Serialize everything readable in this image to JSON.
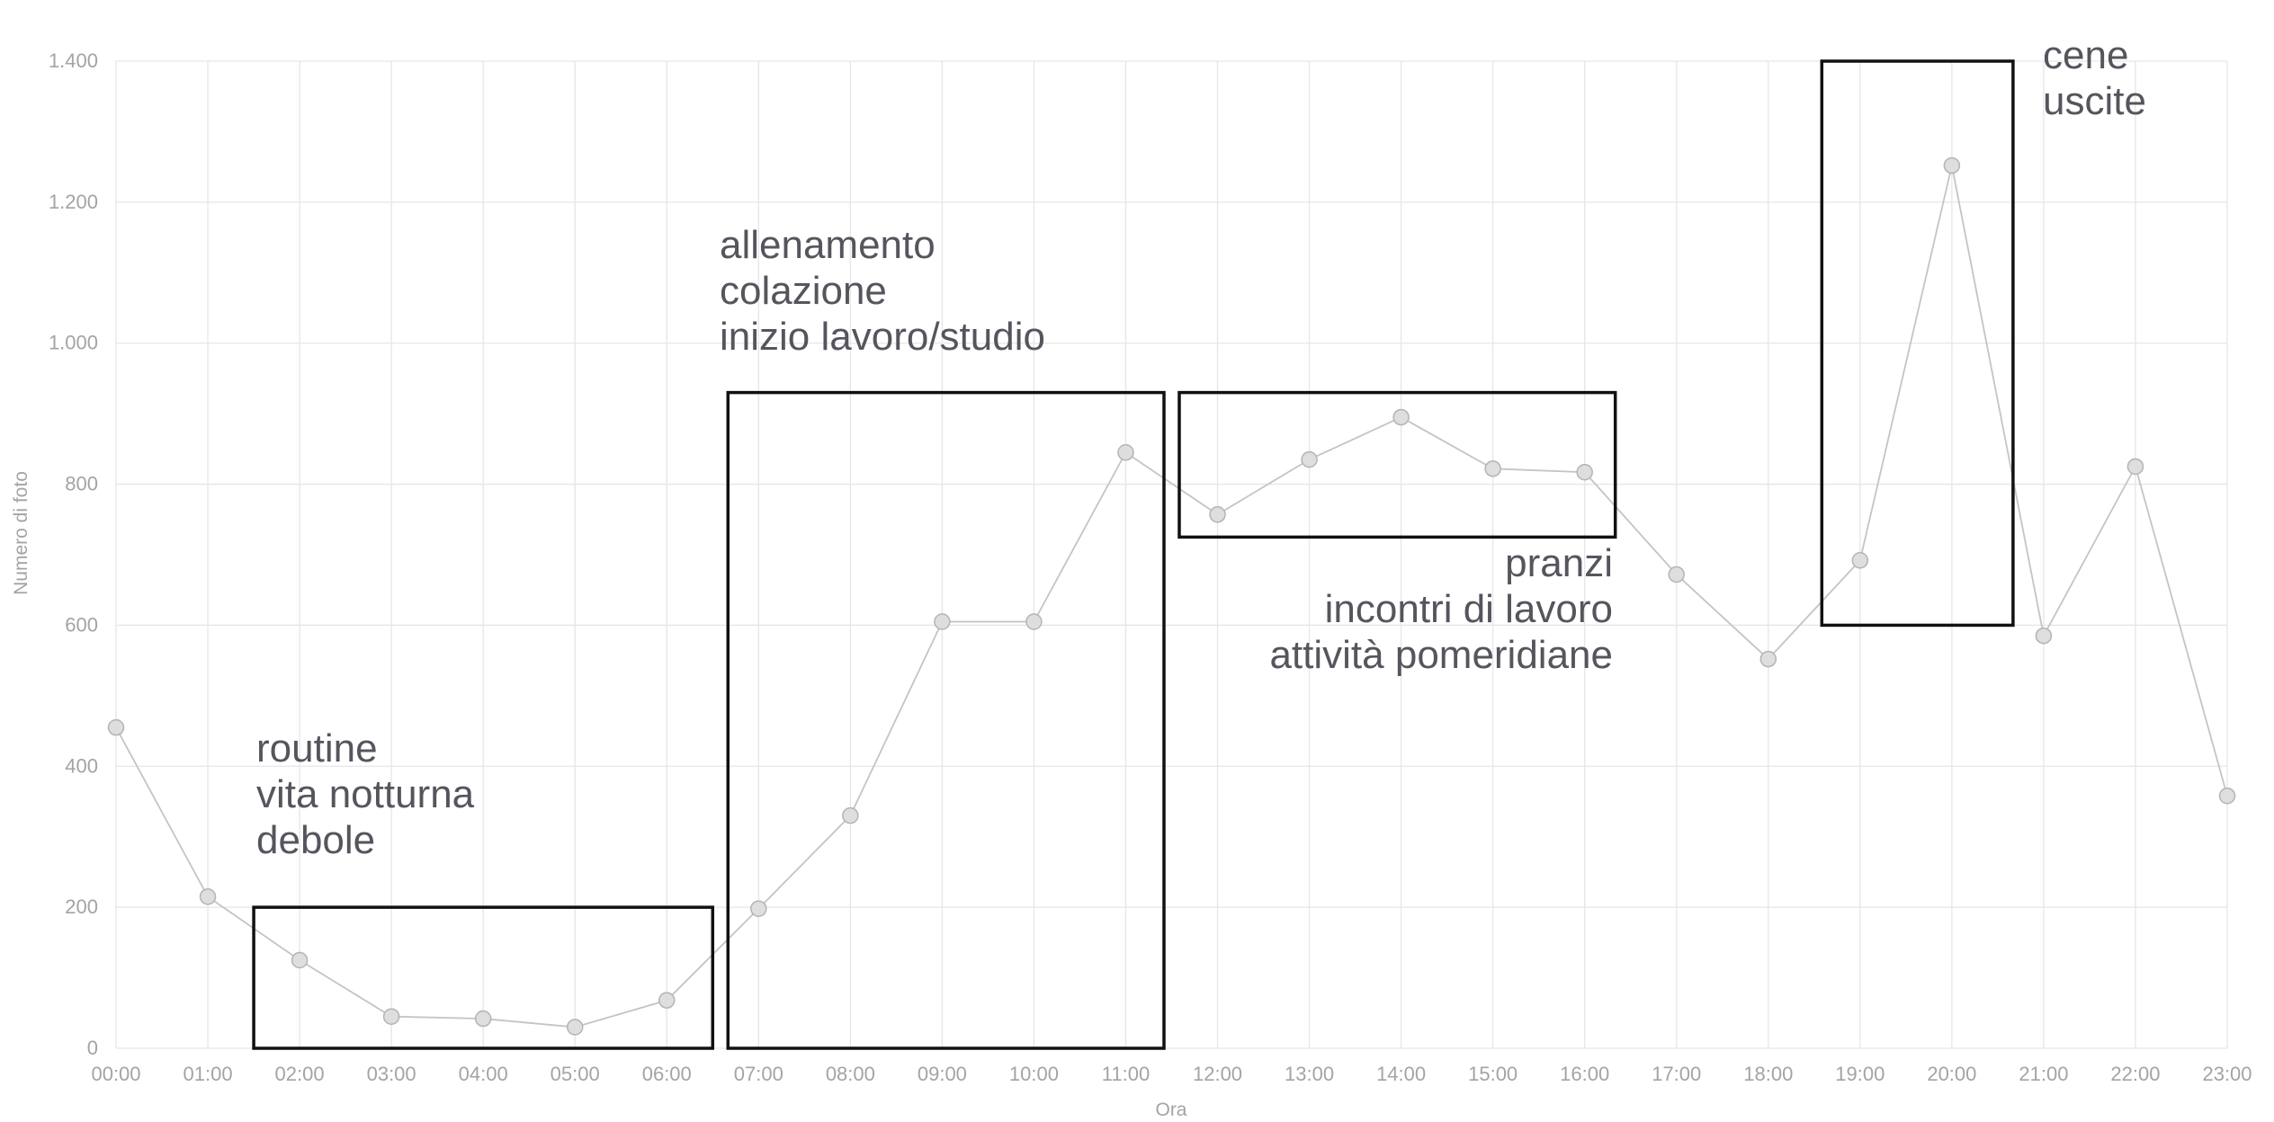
{
  "chart_data": {
    "type": "line",
    "title": "",
    "xlabel": "Ora",
    "ylabel": "Numero di foto",
    "ylim": [
      0,
      1400
    ],
    "yticks": [
      0,
      200,
      400,
      600,
      800,
      1000,
      1200,
      1400
    ],
    "ytick_labels": [
      "0",
      "200",
      "400",
      "600",
      "800",
      "1.000",
      "1.200",
      "1.400"
    ],
    "categories": [
      "00:00",
      "01:00",
      "02:00",
      "03:00",
      "04:00",
      "05:00",
      "06:00",
      "07:00",
      "08:00",
      "09:00",
      "10:00",
      "11:00",
      "12:00",
      "13:00",
      "14:00",
      "15:00",
      "16:00",
      "17:00",
      "18:00",
      "19:00",
      "20:00",
      "21:00",
      "22:00",
      "23:00"
    ],
    "values": [
      455,
      215,
      125,
      45,
      42,
      30,
      68,
      198,
      330,
      605,
      605,
      845,
      757,
      835,
      895,
      822,
      817,
      672,
      552,
      692,
      1252,
      585,
      825,
      358
    ],
    "grid": true,
    "legend": "none",
    "colors": {
      "line": "#c4c4c8",
      "marker_fill": "#dedede",
      "marker_stroke": "#b4b4b8",
      "grid": "#e6e6e6",
      "box": "#111111",
      "annotation": "#55555e",
      "tick": "#a3a3a8"
    },
    "annotations": [
      {
        "id": "night",
        "lines": [
          "routine",
          "vita notturna",
          "debole"
        ],
        "x_range": [
          "01:30",
          "06:30"
        ],
        "y_range": [
          0,
          200
        ]
      },
      {
        "id": "morning",
        "lines": [
          "allenamento",
          "colazione",
          "inizio lavoro/studio"
        ],
        "x_range": [
          "06:40",
          "11:25"
        ],
        "y_range": [
          0,
          930
        ]
      },
      {
        "id": "afternoon",
        "lines": [
          "pranzi",
          "incontri di lavoro",
          "attività pomeridiane"
        ],
        "x_range": [
          "11:35",
          "16:20"
        ],
        "y_range": [
          725,
          930
        ]
      },
      {
        "id": "evening",
        "lines": [
          "cene",
          "uscite"
        ],
        "x_range": [
          "18:35",
          "20:40"
        ],
        "y_range": [
          600,
          1400
        ]
      }
    ]
  }
}
